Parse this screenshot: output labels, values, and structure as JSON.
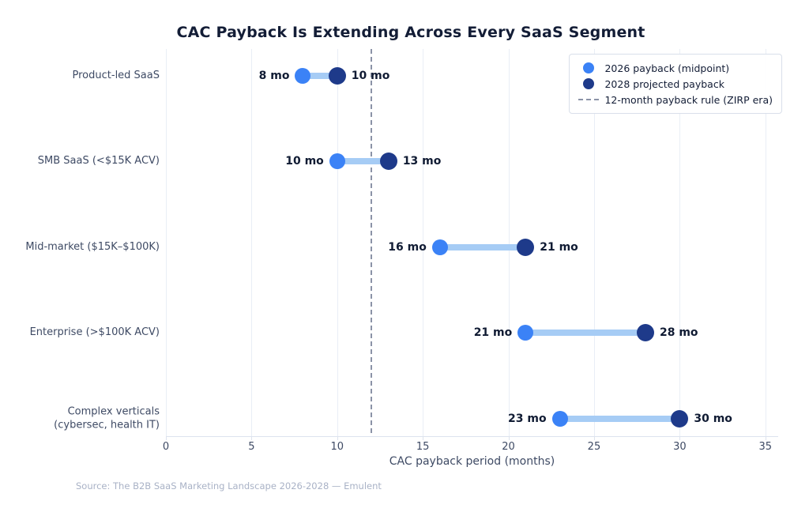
{
  "title": "CAC Payback Is Extending Across Every SaaS Segment",
  "source_note": "Source: The B2B SaaS Marketing Landscape 2026-2028 — Emulent",
  "colors": {
    "series_2026": "#3b82f6",
    "series_2028": "#1e3a8a",
    "connector": "#a6ccf5",
    "reference_line": "#8b93a7",
    "title_text": "#131d36",
    "axis_text": "#3e4a64",
    "grid": "#e9eef6",
    "source_text": "#a9b2c6"
  },
  "chart_data": {
    "type": "dumbbell",
    "title": "CAC Payback Is Extending Across Every SaaS Segment",
    "xlabel": "CAC payback period (months)",
    "ylabel": "",
    "categories": [
      "Product-led SaaS",
      "SMB SaaS (<$15K ACV)",
      "Mid-market ($15K–$100K)",
      "Enterprise (>$100K ACV)",
      "Complex verticals\n(cybersec, health IT)"
    ],
    "series": [
      {
        "name": "2026 payback (midpoint)",
        "values": [
          8,
          10,
          16,
          21,
          23
        ],
        "color": "#3b82f6"
      },
      {
        "name": "2028 projected payback",
        "values": [
          10,
          13,
          21,
          28,
          30
        ],
        "color": "#1e3a8a"
      }
    ],
    "value_suffix": " mo",
    "reference_line": {
      "value": 12,
      "label": "12-month payback rule (ZIRP era)"
    },
    "xticks": [
      0,
      5,
      10,
      15,
      20,
      25,
      30,
      35
    ],
    "xlim": [
      0,
      35.75
    ],
    "grid": true,
    "legend_position": "top-right",
    "legend_entries": [
      {
        "marker": "dot",
        "color": "#3b82f6",
        "label": "2026 payback (midpoint)"
      },
      {
        "marker": "dot",
        "color": "#1e3a8a",
        "label": "2028 projected payback"
      },
      {
        "marker": "dash",
        "color": "#8b93a7",
        "label": "12-month payback rule (ZIRP era)"
      }
    ]
  }
}
